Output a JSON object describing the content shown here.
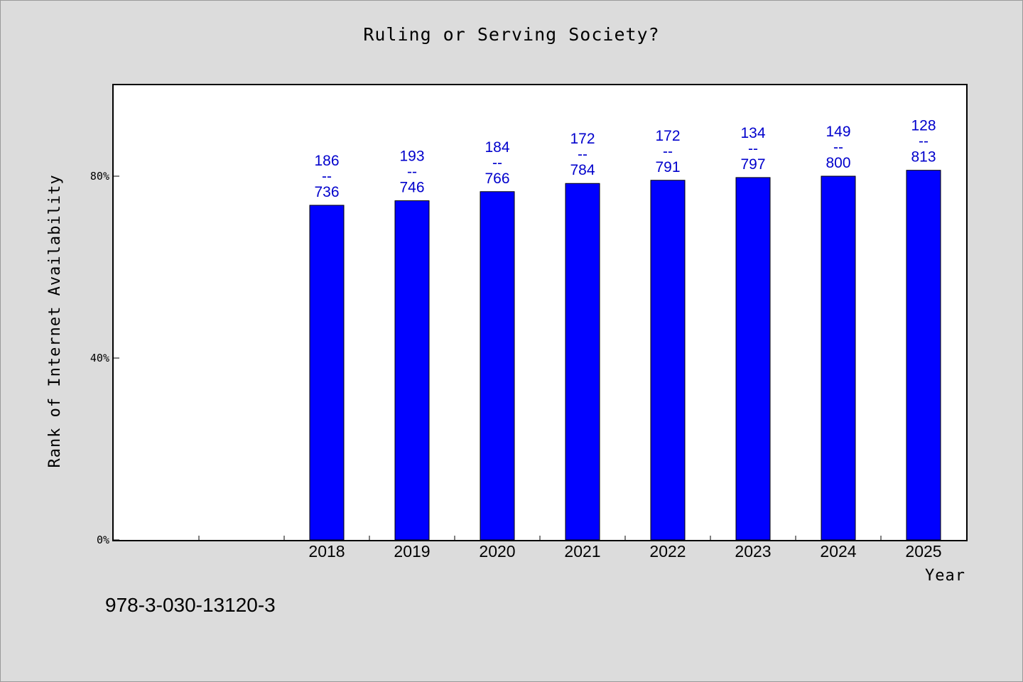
{
  "chart_data": {
    "type": "bar",
    "title": "Ruling or Serving Society?",
    "xlabel": "Year",
    "ylabel": "Rank of Internet Availability",
    "categories": [
      "",
      "",
      "2018",
      "2019",
      "2020",
      "2021",
      "2022",
      "2023",
      "2024",
      "2025"
    ],
    "values": [
      null,
      null,
      73.6,
      74.6,
      76.6,
      78.4,
      79.1,
      79.7,
      80.0,
      81.3
    ],
    "bar_labels": [
      null,
      null,
      {
        "rank": "186",
        "sep": "--",
        "count": "736"
      },
      {
        "rank": "193",
        "sep": "--",
        "count": "746"
      },
      {
        "rank": "184",
        "sep": "--",
        "count": "766"
      },
      {
        "rank": "172",
        "sep": "--",
        "count": "784"
      },
      {
        "rank": "172",
        "sep": "--",
        "count": "791"
      },
      {
        "rank": "134",
        "sep": "--",
        "count": "797"
      },
      {
        "rank": "149",
        "sep": "--",
        "count": "800"
      },
      {
        "rank": "128",
        "sep": "--",
        "count": "813"
      }
    ],
    "yticks": [
      {
        "value": 0,
        "label": "0%"
      },
      {
        "value": 40,
        "label": "40%"
      },
      {
        "value": 80,
        "label": "80%"
      }
    ],
    "ylim": [
      0,
      100
    ],
    "grid": false,
    "bar_color": "#0000ff",
    "label_color": "#0000cc"
  },
  "footer": {
    "isbn": "978-3-030-13120-3"
  }
}
